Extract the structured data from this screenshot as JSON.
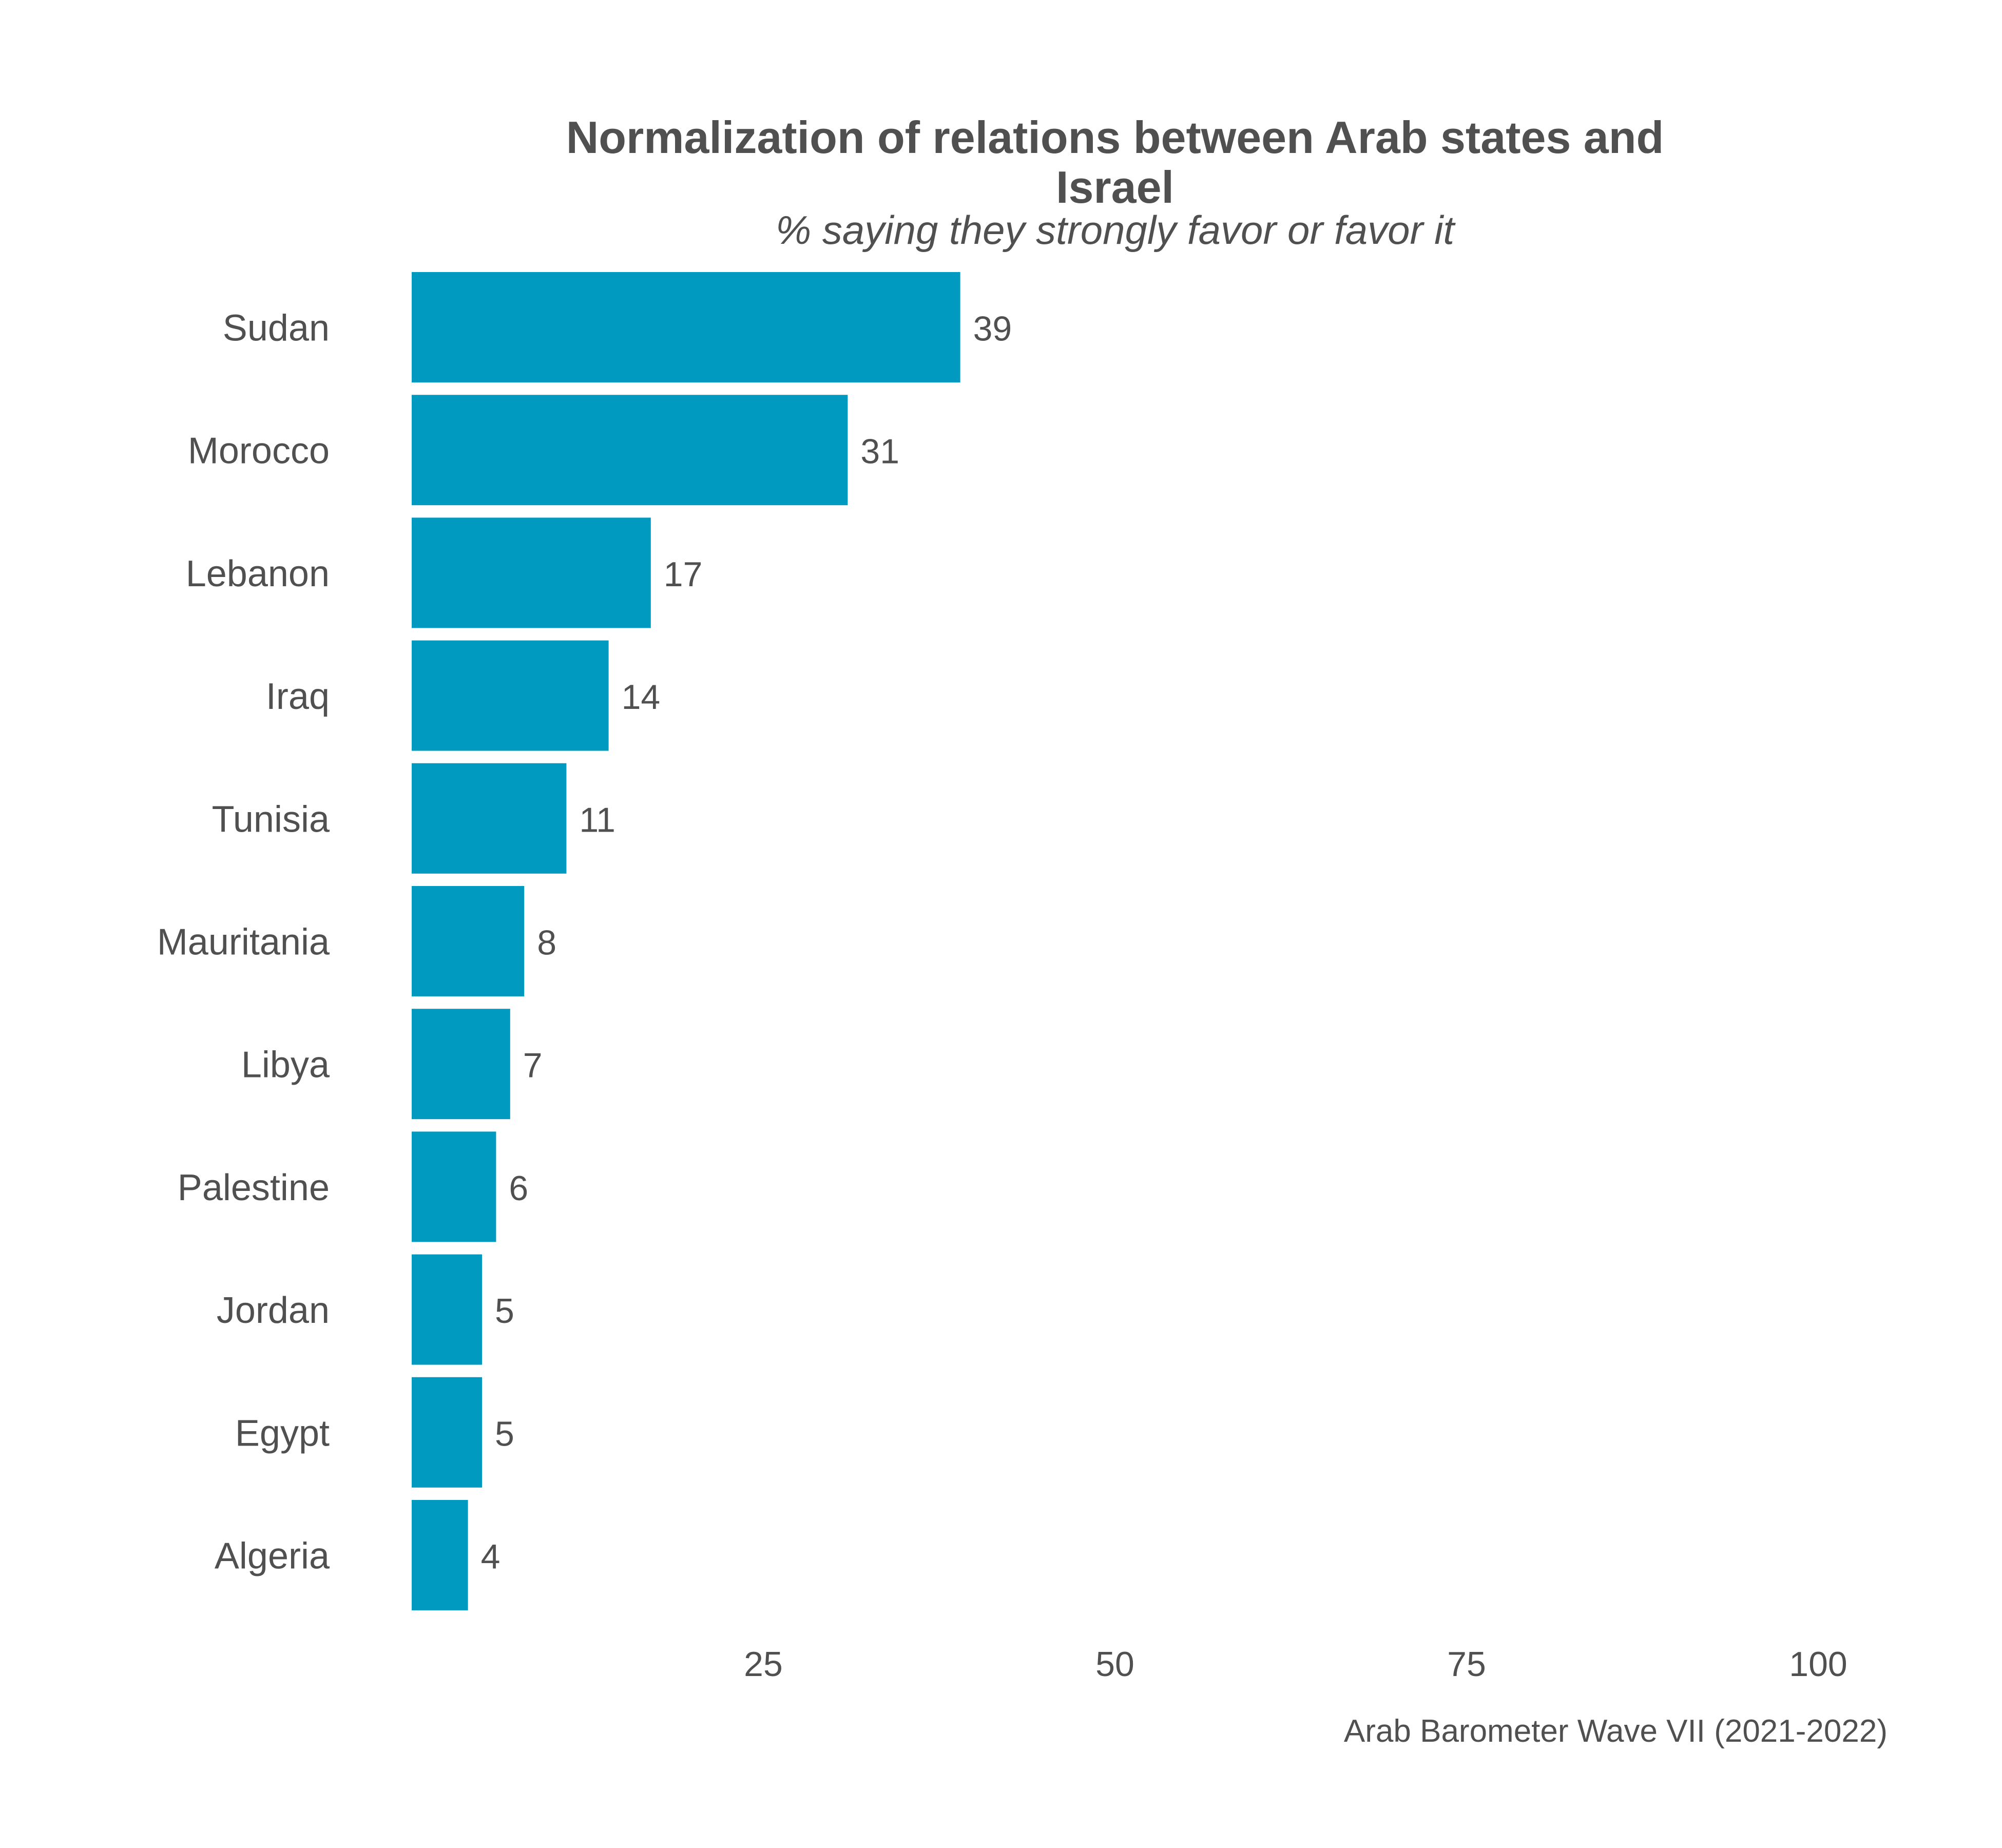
{
  "chart_data": {
    "type": "bar",
    "orientation": "horizontal",
    "title": "Normalization of relations between Arab states and Israel",
    "title_lines": [
      "Normalization of relations between Arab states and",
      "Israel"
    ],
    "subtitle": "% saying they strongly favor or favor it",
    "caption": "Arab Barometer Wave VII (2021-2022)",
    "categories": [
      "Sudan",
      "Morocco",
      "Lebanon",
      "Iraq",
      "Tunisia",
      "Mauritania",
      "Libya",
      "Palestine",
      "Jordan",
      "Egypt",
      "Algeria"
    ],
    "values": [
      39,
      31,
      17,
      14,
      11,
      8,
      7,
      6,
      5,
      5,
      4
    ],
    "xlim": [
      0,
      100
    ],
    "xticks": [
      25,
      50,
      75,
      100
    ],
    "grid": false,
    "data_labels": true,
    "colors": {
      "bar": "#0099C0",
      "text": "#505050"
    }
  }
}
